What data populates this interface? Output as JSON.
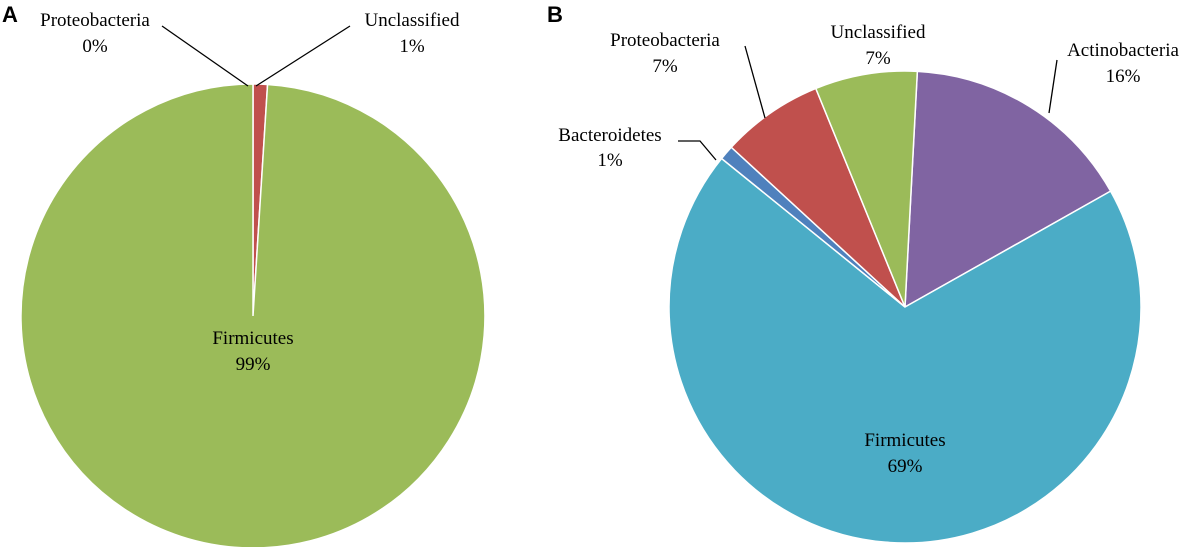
{
  "chart_data": [
    {
      "type": "pie",
      "panel": "A",
      "slices": [
        {
          "label": "Firmicutes",
          "value_label": "99%",
          "value": 99,
          "color": "#9BBB59"
        },
        {
          "label": "Proteobacteria",
          "value_label": "0%",
          "value": 0,
          "color": "#C0504D"
        },
        {
          "label": "Unclassified",
          "value_label": "1%",
          "value": 1,
          "color": "#C0504D"
        }
      ]
    },
    {
      "type": "pie",
      "panel": "B",
      "slices": [
        {
          "label": "Actinobacteria",
          "value_label": "16%",
          "value": 16,
          "color": "#8064A2"
        },
        {
          "label": "Firmicutes",
          "value_label": "69%",
          "value": 69,
          "color": "#4BACC6"
        },
        {
          "label": "Bacteroidetes",
          "value_label": "1%",
          "value": 1,
          "color": "#4F81BD"
        },
        {
          "label": "Proteobacteria",
          "value_label": "7%",
          "value": 7,
          "color": "#C0504D"
        },
        {
          "label": "Unclassified",
          "value_label": "7%",
          "value": 7,
          "color": "#9BBB59"
        }
      ]
    }
  ]
}
